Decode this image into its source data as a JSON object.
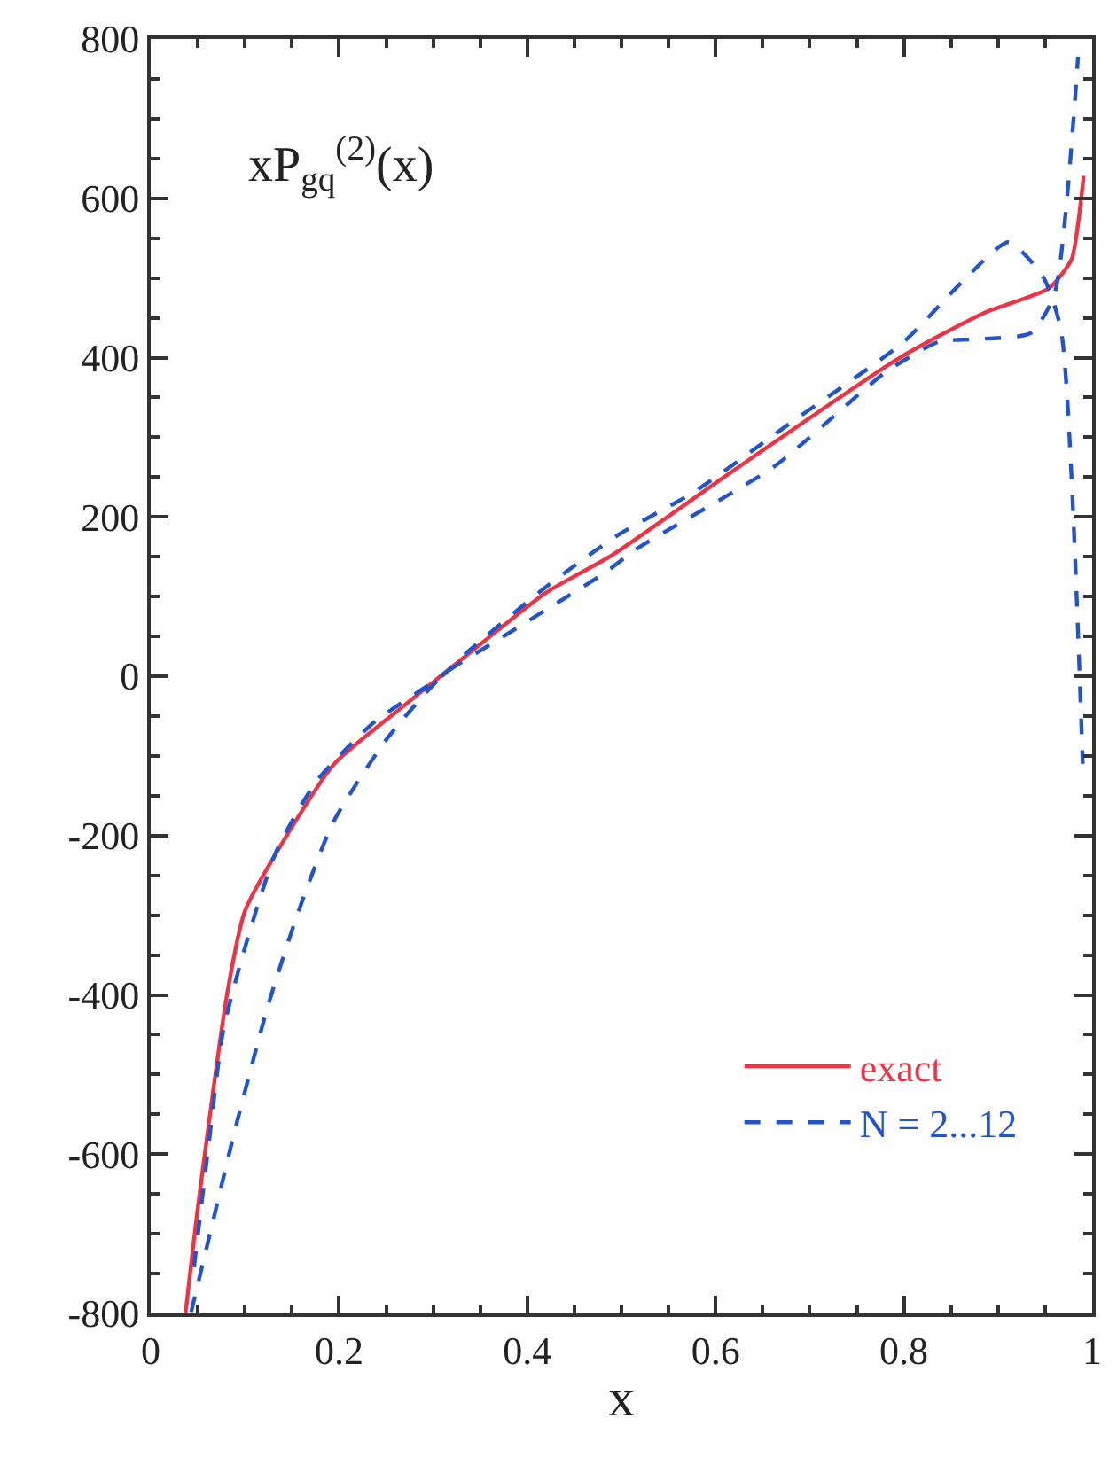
{
  "chart_data": {
    "type": "line",
    "xlabel": "x",
    "annotations": [
      "xP$_{gq}$$^{(2)}$(x)"
    ],
    "xlim": [
      0,
      1
    ],
    "xticks": [
      0,
      0.2,
      0.4,
      0.6,
      0.8,
      1
    ],
    "ylim": [
      -800,
      800
    ],
    "yticks": [
      -800,
      -600,
      -400,
      -200,
      0,
      200,
      400,
      600,
      800
    ],
    "legend": "bottom right",
    "series": [
      {
        "name": "exact",
        "color": "#ee3344",
        "line_style": "solid",
        "x": [
          0.037,
          0.05,
          0.081,
          0.1,
          0.145,
          0.195,
          0.27,
          0.35,
          0.42,
          0.49,
          0.615,
          0.793,
          0.885,
          0.954,
          0.978,
          0.985,
          0.991
        ],
        "values": [
          -800,
          -668,
          -400,
          -295,
          -199,
          -110,
          -36,
          40,
          105,
          152,
          255,
          398,
          456,
          487,
          523,
          568,
          628
        ]
      },
      {
        "name": "N = 2...12",
        "color": "#2255cc",
        "line_style": "dashed",
        "x": [
          0.043,
          0.065,
          0.089,
          0.124,
          0.157,
          0.194,
          0.25,
          0.311,
          0.361,
          0.485,
          0.515,
          0.663,
          0.781,
          0.837,
          0.874,
          0.935,
          0.96,
          0.985
        ],
        "values": [
          -798,
          -690,
          -572,
          -416,
          -295,
          -183,
          -80,
          2,
          40,
          132,
          159,
          264,
          382,
          420,
          423,
          431,
          480,
          778
        ]
      },
      {
        "color": "#2255cc",
        "line_style": "dashed",
        "x": [
          0.046,
          0.061,
          0.077,
          0.102,
          0.133,
          0.176,
          0.237,
          0.311,
          0.337,
          0.422,
          0.496,
          0.578,
          0.676,
          0.8,
          0.861,
          0.911,
          0.948,
          0.967,
          0.99
        ],
        "values": [
          -742,
          -594,
          -445,
          -333,
          -221,
          -132,
          -58,
          2,
          31,
          114,
          177,
          232,
          315,
          420,
          494,
          545,
          501,
          434,
          -110
        ]
      }
    ]
  }
}
